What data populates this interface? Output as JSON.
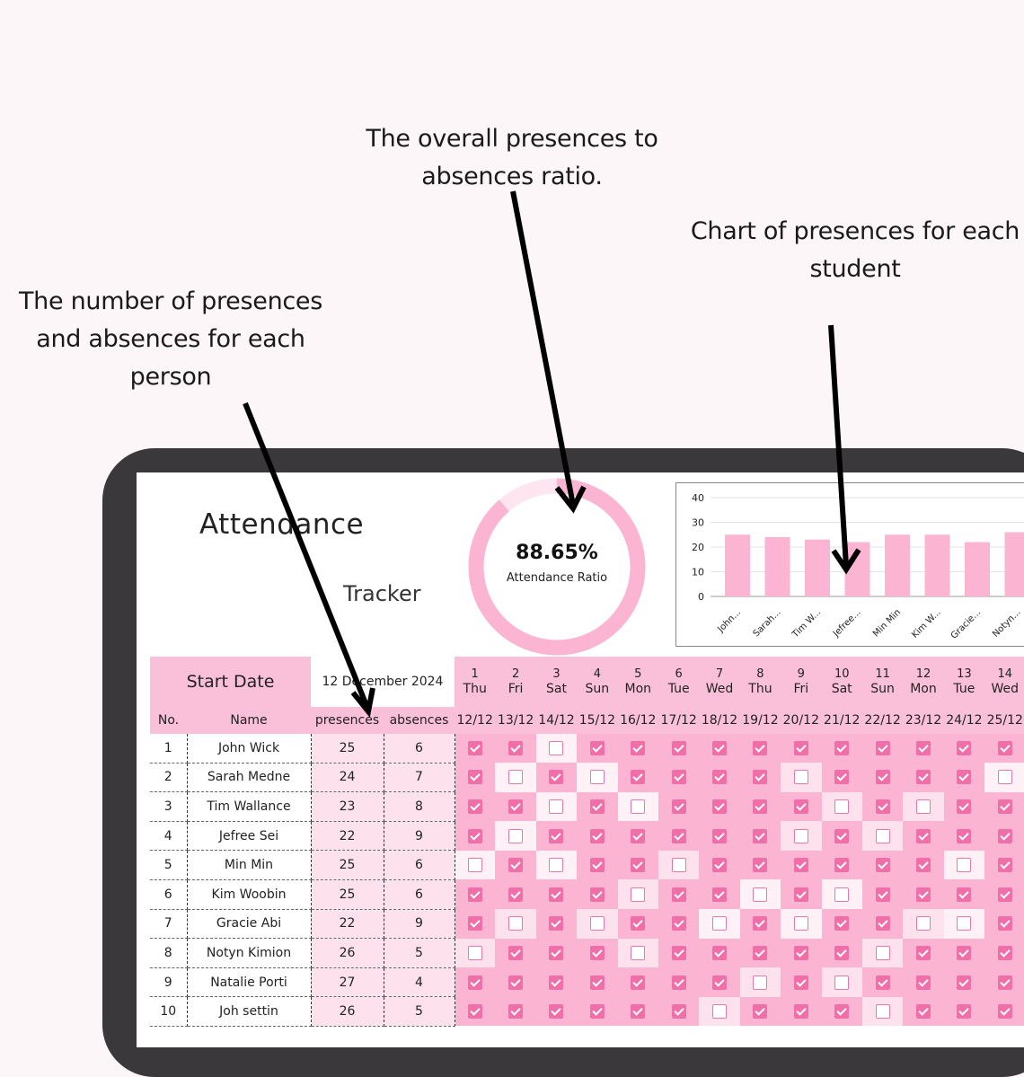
{
  "annotations": {
    "ratio_line1": "The overall presences to",
    "ratio_line2": "absences ratio.",
    "chart_line1": "Chart of presences for each",
    "chart_line2": "student",
    "counts_line1": "The number of presences",
    "counts_line2": "and absences for each",
    "counts_line3": "person"
  },
  "title": {
    "line1": "Attendance",
    "line2": "Tracker"
  },
  "ratio": {
    "value": "88.65%",
    "label": "Attendance Ratio",
    "fraction": 0.8865
  },
  "chart_data": {
    "type": "bar",
    "categories": [
      "John...",
      "Sarah...",
      "Tim W...",
      "Jefree...",
      "Min Min",
      "Kim W...",
      "Gracie...",
      "Notyn..."
    ],
    "values": [
      25,
      24,
      23,
      22,
      25,
      25,
      22,
      26
    ],
    "ylim": [
      0,
      40
    ],
    "yticks": [
      0,
      10,
      20,
      30,
      40
    ],
    "color": "#fbb5d3",
    "grid": true
  },
  "table": {
    "start_label": "Start Date",
    "start_value": "12 December 2024",
    "col_no": "No.",
    "col_name": "Name",
    "col_presences": "presences",
    "col_absences": "absences",
    "days": [
      {
        "n": "1",
        "d": "Thu",
        "date": "12/12"
      },
      {
        "n": "2",
        "d": "Fri",
        "date": "13/12"
      },
      {
        "n": "3",
        "d": "Sat",
        "date": "14/12"
      },
      {
        "n": "4",
        "d": "Sun",
        "date": "15/12"
      },
      {
        "n": "5",
        "d": "Mon",
        "date": "16/12"
      },
      {
        "n": "6",
        "d": "Tue",
        "date": "17/12"
      },
      {
        "n": "7",
        "d": "Wed",
        "date": "18/12"
      },
      {
        "n": "8",
        "d": "Thu",
        "date": "19/12"
      },
      {
        "n": "9",
        "d": "Fri",
        "date": "20/12"
      },
      {
        "n": "10",
        "d": "Sat",
        "date": "21/12"
      },
      {
        "n": "11",
        "d": "Sun",
        "date": "22/12"
      },
      {
        "n": "12",
        "d": "Mon",
        "date": "23/12"
      },
      {
        "n": "13",
        "d": "Tue",
        "date": "24/12"
      },
      {
        "n": "14",
        "d": "Wed",
        "date": "25/12"
      }
    ],
    "rows": [
      {
        "no": "1",
        "name": "John Wick",
        "p": "25",
        "a": "6",
        "checks": [
          1,
          1,
          0,
          1,
          1,
          1,
          1,
          1,
          1,
          1,
          1,
          1,
          1,
          1
        ]
      },
      {
        "no": "2",
        "name": "Sarah Medne",
        "p": "24",
        "a": "7",
        "checks": [
          1,
          0,
          1,
          0,
          1,
          1,
          1,
          1,
          0,
          1,
          1,
          1,
          1,
          0
        ]
      },
      {
        "no": "3",
        "name": "Tim Wallance",
        "p": "23",
        "a": "8",
        "checks": [
          1,
          1,
          0,
          1,
          0,
          1,
          1,
          1,
          1,
          0,
          1,
          0,
          1,
          1
        ]
      },
      {
        "no": "4",
        "name": "Jefree Sei",
        "p": "22",
        "a": "9",
        "checks": [
          1,
          0,
          1,
          1,
          1,
          1,
          1,
          1,
          0,
          1,
          0,
          1,
          1,
          1
        ]
      },
      {
        "no": "5",
        "name": "Min Min",
        "p": "25",
        "a": "6",
        "checks": [
          0,
          1,
          0,
          1,
          1,
          0,
          1,
          1,
          1,
          1,
          1,
          1,
          0,
          1
        ]
      },
      {
        "no": "6",
        "name": "Kim Woobin",
        "p": "25",
        "a": "6",
        "checks": [
          1,
          1,
          1,
          1,
          0,
          1,
          1,
          0,
          1,
          0,
          1,
          1,
          1,
          1
        ]
      },
      {
        "no": "7",
        "name": "Gracie Abi",
        "p": "22",
        "a": "9",
        "checks": [
          1,
          0,
          1,
          0,
          1,
          1,
          0,
          1,
          0,
          1,
          1,
          0,
          0,
          1
        ]
      },
      {
        "no": "8",
        "name": "Notyn Kimion",
        "p": "26",
        "a": "5",
        "checks": [
          0,
          1,
          1,
          1,
          0,
          1,
          1,
          1,
          1,
          1,
          0,
          1,
          1,
          1
        ]
      },
      {
        "no": "9",
        "name": "Natalie Porti",
        "p": "27",
        "a": "4",
        "checks": [
          1,
          1,
          1,
          1,
          1,
          1,
          1,
          0,
          1,
          0,
          1,
          1,
          1,
          1
        ]
      },
      {
        "no": "10",
        "name": "Joh settin",
        "p": "26",
        "a": "5",
        "checks": [
          1,
          1,
          1,
          1,
          1,
          1,
          0,
          1,
          1,
          1,
          0,
          1,
          1,
          1
        ]
      }
    ]
  },
  "colors": {
    "accent": "#fbc0d9",
    "check": "#f06fa8",
    "frame": "#3b383c"
  }
}
